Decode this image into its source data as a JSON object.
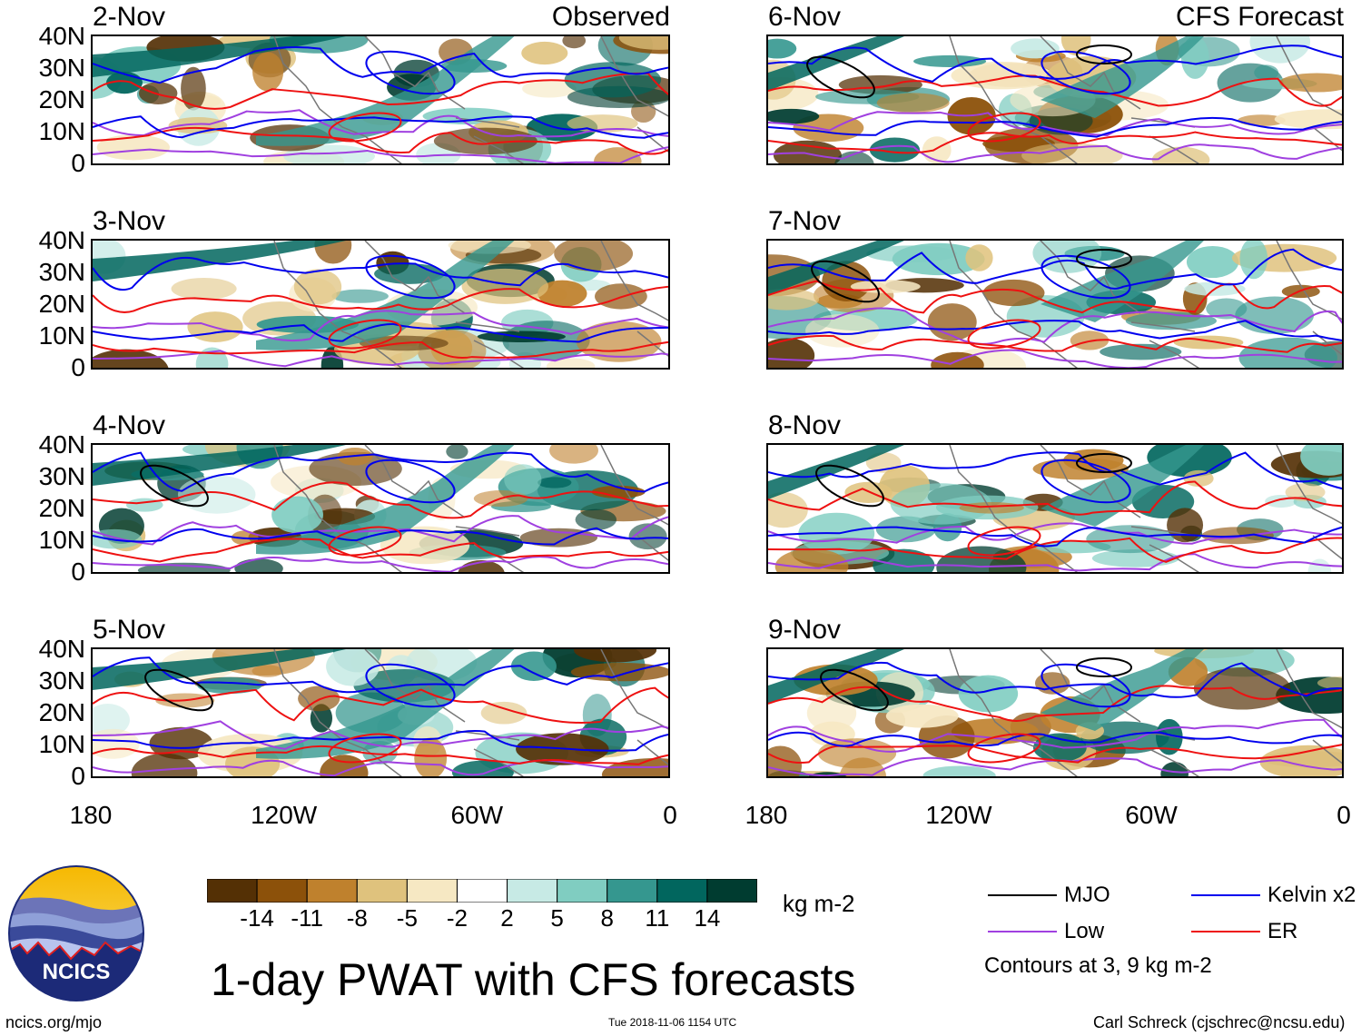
{
  "panels_left": [
    {
      "date": "2-Nov",
      "tag": "Observed"
    },
    {
      "date": "3-Nov",
      "tag": ""
    },
    {
      "date": "4-Nov",
      "tag": ""
    },
    {
      "date": "5-Nov",
      "tag": ""
    }
  ],
  "panels_right": [
    {
      "date": "6-Nov",
      "tag": "CFS Forecast"
    },
    {
      "date": "7-Nov",
      "tag": ""
    },
    {
      "date": "8-Nov",
      "tag": ""
    },
    {
      "date": "9-Nov",
      "tag": ""
    }
  ],
  "lat_labels": [
    "40N",
    "30N",
    "20N",
    "10N",
    "0"
  ],
  "lon_labels": [
    "180",
    "120W",
    "60W",
    "0"
  ],
  "colorbar": {
    "ticks": [
      "-14",
      "-11",
      "-8",
      "-5",
      "-2",
      "2",
      "5",
      "8",
      "11",
      "14"
    ],
    "colors": [
      "#543005",
      "#8c510a",
      "#bf812d",
      "#dfc27d",
      "#f6e8c3",
      "#ffffff",
      "#c7eae5",
      "#80cdc1",
      "#35978f",
      "#01665e",
      "#003c30"
    ],
    "units": "kg m-2"
  },
  "title": "1-day PWAT with CFS forecasts",
  "logo_text": "NCICS",
  "legend": {
    "items": [
      {
        "label": "MJO",
        "color": "#000000"
      },
      {
        "label": "Kelvin x2",
        "color": "#0000ee"
      },
      {
        "label": "Low",
        "color": "#a040e0"
      },
      {
        "label": "ER",
        "color": "#ee1111"
      }
    ],
    "note": "Contours at 3, 9 kg m-2"
  },
  "footer": {
    "left": "ncics.org/mjo",
    "center": "Tue 2018-11-06 1154 UTC",
    "right": "Carl Schreck (cjschrec@ncsu.edu)"
  }
}
